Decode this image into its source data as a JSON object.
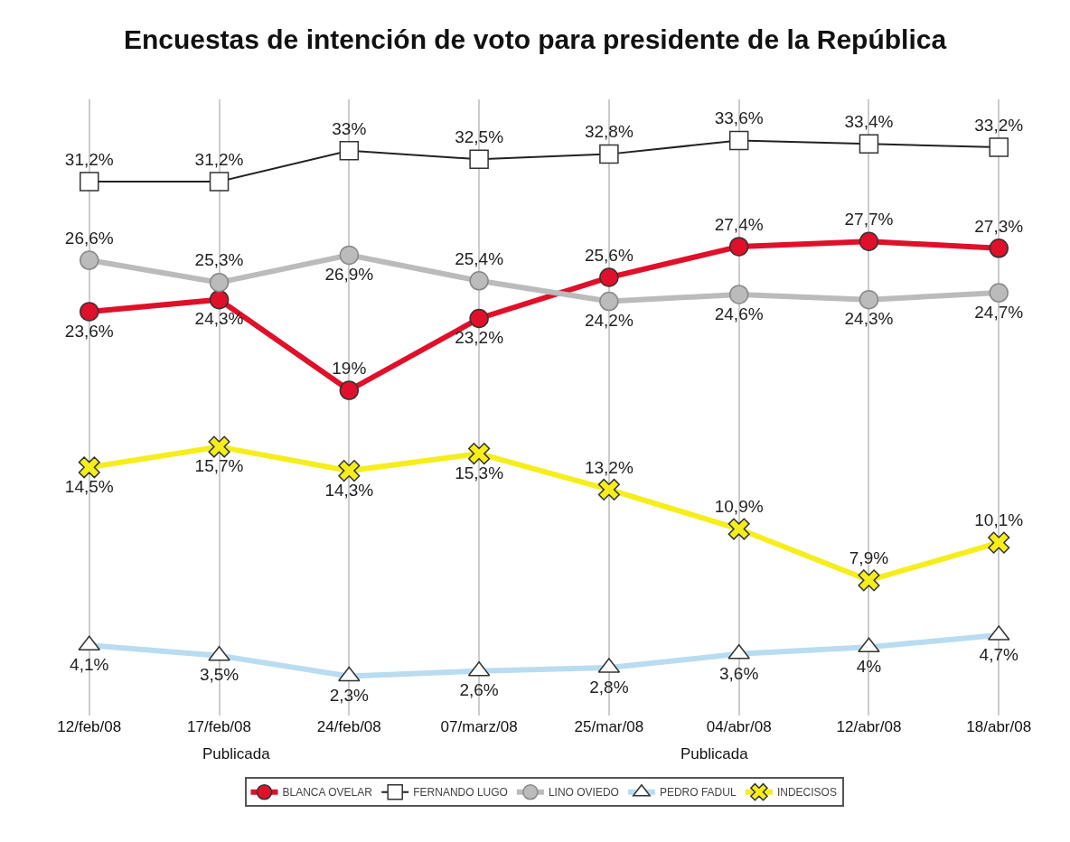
{
  "chart_data": {
    "type": "line",
    "title": "Encuestas de intención de voto para presidente de la República",
    "categories": [
      "12/feb/08",
      "17/feb/08",
      "24/feb/08",
      "07/marz/08",
      "25/mar/08",
      "04/abr/08",
      "12/abr/08",
      "18/abr/08"
    ],
    "series": [
      {
        "name": "BLANCA OVELAR",
        "color": "#e0102a",
        "marker": "circle",
        "values": [
          23.6,
          24.3,
          19,
          23.2,
          25.6,
          27.4,
          27.7,
          27.3
        ],
        "value_labels": [
          "23,6%",
          "24,3%",
          "19%",
          "23,2%",
          "25,6%",
          "27,4%",
          "27,7%",
          "27,3%"
        ]
      },
      {
        "name": "FERNANDO LUGO",
        "color": "#222222",
        "marker": "square",
        "values": [
          31.2,
          31.2,
          33,
          32.5,
          32.8,
          33.6,
          33.4,
          33.2
        ],
        "value_labels": [
          "31,2%",
          "31,2%",
          "33%",
          "32,5%",
          "32,8%",
          "33,6%",
          "33,4%",
          "33,2%"
        ]
      },
      {
        "name": "LINO OVIEDO",
        "color": "#bbbbbb",
        "marker": "circle",
        "values": [
          26.6,
          25.3,
          26.9,
          25.4,
          24.2,
          24.6,
          24.3,
          24.7
        ],
        "value_labels": [
          "26,6%",
          "25,3%",
          "26,9%",
          "25,4%",
          "24,2%",
          "24,6%",
          "24,3%",
          "24,7%"
        ]
      },
      {
        "name": "PEDRO FADUL",
        "color": "#b9dcf0",
        "marker": "triangle",
        "values": [
          4.1,
          3.5,
          2.3,
          2.6,
          2.8,
          3.6,
          4,
          4.7
        ],
        "value_labels": [
          "4,1%",
          "3,5%",
          "2,3%",
          "2,6%",
          "2,8%",
          "3,6%",
          "4%",
          "4,7%"
        ]
      },
      {
        "name": "INDECISOS",
        "color": "#f5ee1c",
        "marker": "cross",
        "values": [
          14.5,
          15.7,
          14.3,
          15.3,
          13.2,
          10.9,
          7.9,
          10.1
        ],
        "value_labels": [
          "14,5%",
          "15,7%",
          "14,3%",
          "15,3%",
          "13,2%",
          "10,9%",
          "7,9%",
          "10,1%"
        ]
      }
    ],
    "annotations": [
      "Publicada",
      "Publicada"
    ],
    "grid": "x",
    "legend": "bottom"
  }
}
